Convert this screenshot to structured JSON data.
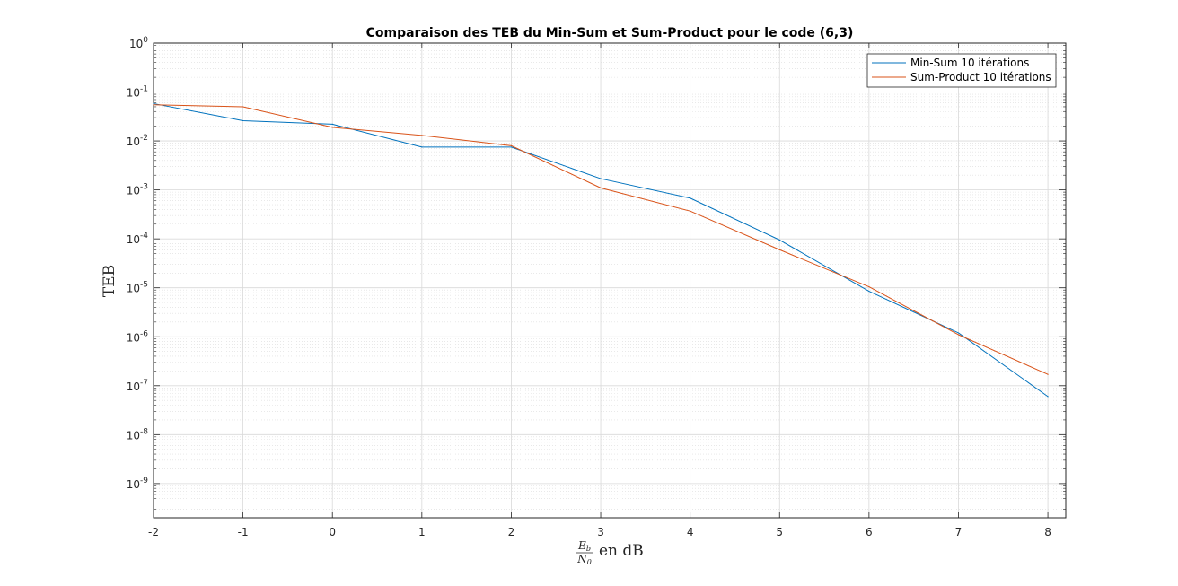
{
  "chart_data": {
    "type": "line",
    "title": "Comparaison des TEB du Min-Sum et Sum-Product pour le code (6,3)",
    "ylabel": "TEB",
    "xlabel_parts": {
      "numerator": "E",
      "numerator_sub": "b",
      "denominator": "N",
      "denominator_sub": "0",
      "suffix": "en dB"
    },
    "xlim": [
      -2.0,
      8.2
    ],
    "ylim": [
      2e-10,
      1
    ],
    "yscale": "log",
    "x_ticks": [
      -2,
      -1,
      0,
      1,
      2,
      3,
      4,
      5,
      6,
      7,
      8
    ],
    "x_tick_labels": [
      "-2",
      "-1",
      "0",
      "1",
      "2",
      "3",
      "4",
      "5",
      "6",
      "7",
      "8"
    ],
    "y_ticks": [
      {
        "value": 1,
        "base": "10",
        "exp": "0"
      },
      {
        "value": 0.1,
        "base": "10",
        "exp": "-1"
      },
      {
        "value": 0.01,
        "base": "10",
        "exp": "-2"
      },
      {
        "value": 0.001,
        "base": "10",
        "exp": "-3"
      },
      {
        "value": 0.0001,
        "base": "10",
        "exp": "-4"
      },
      {
        "value": 1e-05,
        "base": "10",
        "exp": "-5"
      },
      {
        "value": 1e-06,
        "base": "10",
        "exp": "-6"
      },
      {
        "value": 1e-07,
        "base": "10",
        "exp": "-7"
      },
      {
        "value": 1e-08,
        "base": "10",
        "exp": "-8"
      },
      {
        "value": 1e-09,
        "base": "10",
        "exp": "-9"
      }
    ],
    "grid": true,
    "minor_grid": true,
    "legend_position": "top-right",
    "x": [
      -2,
      -1,
      0,
      1,
      2,
      3,
      4,
      5,
      6,
      7,
      8
    ],
    "series": [
      {
        "name": "Min-Sum 10 itérations",
        "color": "#0072BD",
        "values": [
          0.058,
          0.026,
          0.022,
          0.0075,
          0.0075,
          0.0017,
          0.00068,
          9.5e-05,
          8.5e-06,
          1.2e-06,
          6e-08
        ]
      },
      {
        "name": "Sum-Product 10 itérations",
        "color": "#D95319",
        "values": [
          0.055,
          0.05,
          0.019,
          0.013,
          0.008,
          0.0011,
          0.00037,
          6e-05,
          1.05e-05,
          1.1e-06,
          1.7e-07
        ]
      }
    ]
  }
}
